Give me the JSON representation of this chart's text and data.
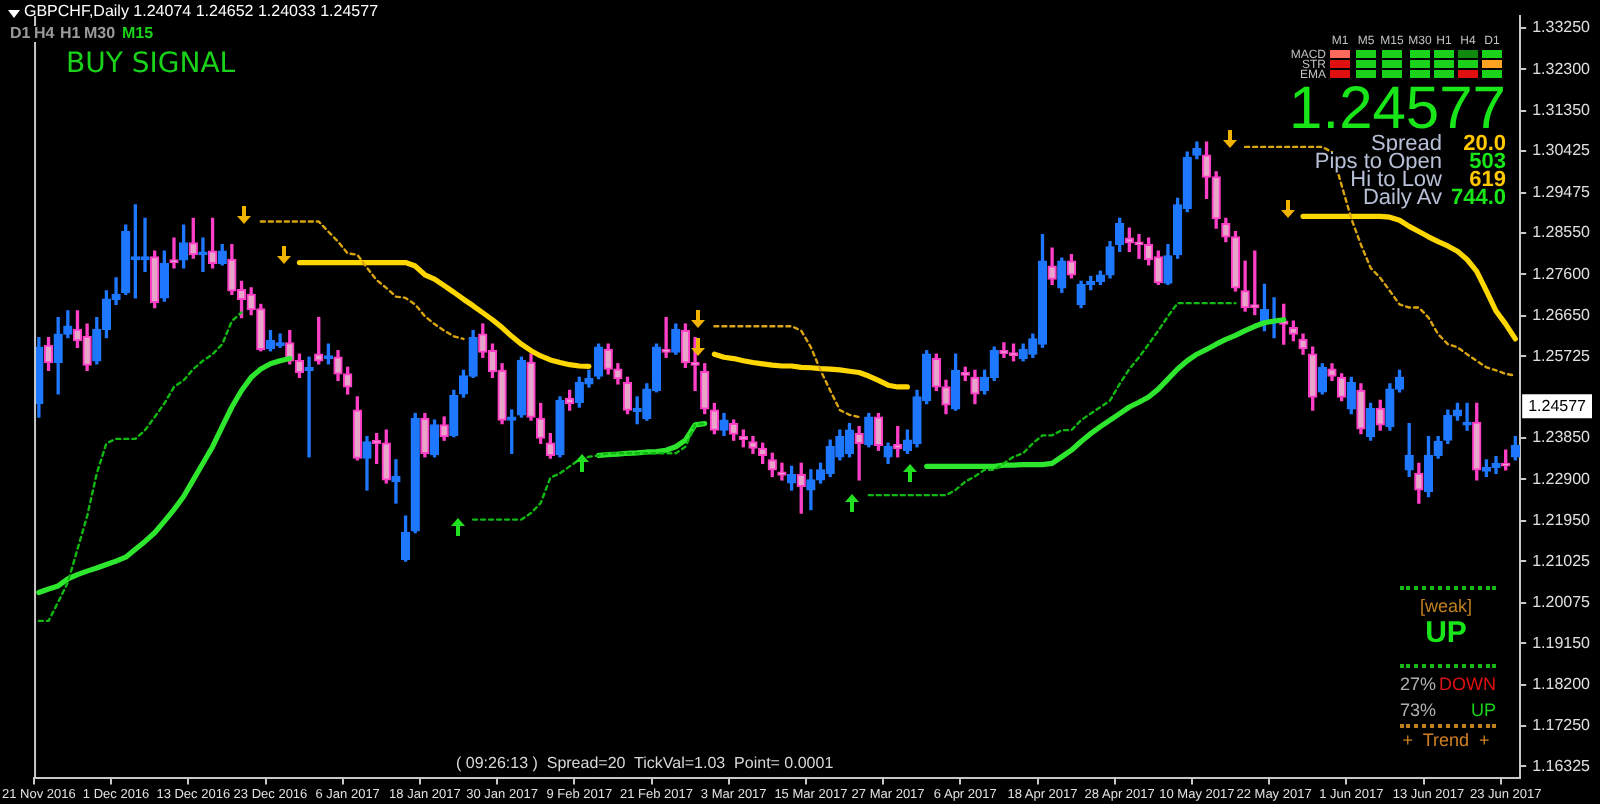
{
  "chart_data": {
    "type": "candlestick",
    "title": "GBPCHF,Daily 1.24074 1.24652 1.24033 1.24577",
    "categories": [
      "21 Nov 2016",
      null,
      null,
      null,
      null,
      null,
      null,
      null,
      "1 Dec 2016",
      null,
      null,
      null,
      null,
      null,
      null,
      null,
      "13 Dec 2016",
      null,
      null,
      null,
      null,
      null,
      null,
      null,
      "23 Dec 2016",
      null,
      null,
      null,
      null,
      null,
      null,
      null,
      "6 Jan 2017",
      null,
      null,
      null,
      null,
      null,
      null,
      null,
      "18 Jan 2017",
      null,
      null,
      null,
      null,
      null,
      null,
      null,
      "30 Jan 2017",
      null,
      null,
      null,
      null,
      null,
      null,
      null,
      "9 Feb 2017",
      null,
      null,
      null,
      null,
      null,
      null,
      null,
      "21 Feb 2017",
      null,
      null,
      null,
      null,
      null,
      null,
      null,
      "3 Mar 2017",
      null,
      null,
      null,
      null,
      null,
      null,
      null,
      "15 Mar 2017",
      null,
      null,
      null,
      null,
      null,
      null,
      null,
      "27 Mar 2017",
      null,
      null,
      null,
      null,
      null,
      null,
      null,
      "6 Apr 2017",
      null,
      null,
      null,
      null,
      null,
      null,
      null,
      "18 Apr 2017",
      null,
      null,
      null,
      null,
      null,
      null,
      null,
      "28 Apr 2017",
      null,
      null,
      null,
      null,
      null,
      null,
      null,
      "10 May 2017",
      null,
      null,
      null,
      null,
      null,
      null,
      null,
      "22 May 2017",
      null,
      null,
      null,
      null,
      null,
      null,
      null,
      "1 Jun 2017",
      null,
      null,
      null,
      null,
      null,
      null,
      null,
      "13 Jun 2017",
      null,
      null,
      null,
      null,
      null,
      null,
      null,
      "23 Jun 2017",
      null
    ],
    "ohlc": [
      [
        1.2464,
        1.2615,
        1.2433,
        1.2593
      ],
      [
        1.2597,
        1.2615,
        1.254,
        1.2558
      ],
      [
        1.2558,
        1.2661,
        1.2486,
        1.2623
      ],
      [
        1.2623,
        1.2676,
        1.2615,
        1.2641
      ],
      [
        1.2634,
        1.2676,
        1.2593,
        1.2608
      ],
      [
        1.2618,
        1.2646,
        1.254,
        1.2552
      ],
      [
        1.2562,
        1.2661,
        1.2555,
        1.2634
      ],
      [
        1.2634,
        1.2722,
        1.2615,
        1.2703
      ],
      [
        1.2702,
        1.2752,
        1.2691,
        1.2714
      ],
      [
        1.2719,
        1.2873,
        1.2714,
        1.2858
      ],
      [
        1.2794,
        1.2919,
        1.2706,
        1.28
      ],
      [
        1.2794,
        1.2888,
        1.2767,
        1.28
      ],
      [
        1.28,
        1.2813,
        1.2684,
        1.2696
      ],
      [
        1.2706,
        1.2813,
        1.2699,
        1.2785
      ],
      [
        1.2793,
        1.2843,
        1.2775,
        1.2787
      ],
      [
        1.2793,
        1.2873,
        1.2775,
        1.2832
      ],
      [
        1.2832,
        1.2888,
        1.2797,
        1.2805
      ],
      [
        1.2805,
        1.2843,
        1.2767,
        1.2811
      ],
      [
        1.2813,
        1.2888,
        1.2775,
        1.2785
      ],
      [
        1.2785,
        1.2828,
        1.2782,
        1.2813
      ],
      [
        1.2794,
        1.2828,
        1.2714,
        1.2722
      ],
      [
        1.2725,
        1.2744,
        1.2661,
        1.2703
      ],
      [
        1.2714,
        1.2729,
        1.2668,
        1.2679
      ],
      [
        1.2681,
        1.2691,
        1.2585,
        1.2588
      ],
      [
        1.259,
        1.2631,
        1.2585,
        1.2608
      ],
      [
        1.2597,
        1.2623,
        1.2593,
        1.2603
      ],
      [
        1.2603,
        1.2631,
        1.2555,
        1.2562
      ],
      [
        1.2562,
        1.2577,
        1.2524,
        1.2535
      ],
      [
        1.254,
        1.257,
        1.2342,
        1.2546
      ],
      [
        1.2577,
        1.2661,
        1.2555,
        1.2562
      ],
      [
        1.2567,
        1.26,
        1.2555,
        1.2573
      ],
      [
        1.257,
        1.2585,
        1.2517,
        1.2532
      ],
      [
        1.2532,
        1.2547,
        1.2486,
        1.2502
      ],
      [
        1.2449,
        1.2479,
        1.2335,
        1.2339
      ],
      [
        1.2339,
        1.2388,
        1.2266,
        1.2376
      ],
      [
        1.2379,
        1.2395,
        1.2327,
        1.2373
      ],
      [
        1.2373,
        1.2403,
        1.2282,
        1.2289
      ],
      [
        1.2285,
        1.2335,
        1.2236,
        1.2297
      ],
      [
        1.2107,
        1.2206,
        1.2103,
        1.2168
      ],
      [
        1.2172,
        1.2441,
        1.2168,
        1.243
      ],
      [
        1.243,
        1.2441,
        1.2342,
        1.235
      ],
      [
        1.2347,
        1.2426,
        1.2342,
        1.2415
      ],
      [
        1.2415,
        1.2433,
        1.238,
        1.2388
      ],
      [
        1.2391,
        1.2494,
        1.2388,
        1.2482
      ],
      [
        1.2486,
        1.254,
        1.2479,
        1.2527
      ],
      [
        1.2527,
        1.2631,
        1.2524,
        1.2615
      ],
      [
        1.2623,
        1.2646,
        1.257,
        1.2582
      ],
      [
        1.2585,
        1.26,
        1.2524,
        1.2537
      ],
      [
        1.254,
        1.2555,
        1.2418,
        1.2426
      ],
      [
        1.2426,
        1.2449,
        1.235,
        1.2433
      ],
      [
        1.2438,
        1.257,
        1.2433,
        1.2562
      ],
      [
        1.2558,
        1.2577,
        1.2426,
        1.2433
      ],
      [
        1.243,
        1.2464,
        1.2373,
        1.2385
      ],
      [
        1.2373,
        1.2395,
        1.2339,
        1.2345
      ],
      [
        1.2347,
        1.2479,
        1.2342,
        1.2471
      ],
      [
        1.2476,
        1.2494,
        1.2449,
        1.2464
      ],
      [
        1.2467,
        1.2524,
        1.2456,
        1.2512
      ],
      [
        1.2509,
        1.254,
        1.2502,
        1.2521
      ],
      [
        1.2527,
        1.26,
        1.2521,
        1.2593
      ],
      [
        1.2588,
        1.26,
        1.2532,
        1.2543
      ],
      [
        1.2543,
        1.2555,
        1.2509,
        1.2521
      ],
      [
        1.2512,
        1.2524,
        1.2441,
        1.2449
      ],
      [
        1.2446,
        1.2479,
        1.2418,
        1.2452
      ],
      [
        1.243,
        1.2509,
        1.2426,
        1.2497
      ],
      [
        1.2494,
        1.26,
        1.2491,
        1.2593
      ],
      [
        1.2588,
        1.2661,
        1.257,
        1.2582
      ],
      [
        1.2582,
        1.2646,
        1.2577,
        1.2634
      ],
      [
        1.2631,
        1.2646,
        1.2547,
        1.2558
      ],
      [
        1.2558,
        1.2615,
        1.2494,
        1.2552
      ],
      [
        1.2537,
        1.2555,
        1.2441,
        1.2452
      ],
      [
        1.2449,
        1.2464,
        1.2395,
        1.2403
      ],
      [
        1.2403,
        1.2441,
        1.2391,
        1.2426
      ],
      [
        1.2418,
        1.2426,
        1.238,
        1.2394
      ],
      [
        1.2388,
        1.2403,
        1.2365,
        1.2382
      ],
      [
        1.2376,
        1.2388,
        1.235,
        1.2362
      ],
      [
        1.2361,
        1.2373,
        1.2327,
        1.2345
      ],
      [
        1.2335,
        1.235,
        1.2297,
        1.2312
      ],
      [
        1.2307,
        1.2327,
        1.2289,
        1.23
      ],
      [
        1.2282,
        1.232,
        1.2266,
        1.2301
      ],
      [
        1.2301,
        1.2327,
        1.2213,
        1.2274
      ],
      [
        1.2266,
        1.2312,
        1.2221,
        1.2289
      ],
      [
        1.2289,
        1.2327,
        1.2282,
        1.2312
      ],
      [
        1.2304,
        1.238,
        1.2297,
        1.2365
      ],
      [
        1.2342,
        1.2403,
        1.2335,
        1.2388
      ],
      [
        1.235,
        1.2418,
        1.2342,
        1.2403
      ],
      [
        1.2395,
        1.2411,
        1.2289,
        1.2373
      ],
      [
        1.237,
        1.2441,
        1.2365,
        1.2433
      ],
      [
        1.2433,
        1.2441,
        1.2357,
        1.2368
      ],
      [
        1.2342,
        1.2373,
        1.2327,
        1.2365
      ],
      [
        1.237,
        1.2411,
        1.2342,
        1.2361
      ],
      [
        1.2357,
        1.2403,
        1.235,
        1.238
      ],
      [
        1.2373,
        1.2494,
        1.2365,
        1.2479
      ],
      [
        1.2471,
        1.2585,
        1.2464,
        1.2577
      ],
      [
        1.2567,
        1.2577,
        1.2494,
        1.2502
      ],
      [
        1.2502,
        1.2517,
        1.2441,
        1.2461
      ],
      [
        1.2452,
        1.2577,
        1.2449,
        1.254
      ],
      [
        1.2535,
        1.2547,
        1.2517,
        1.2529
      ],
      [
        1.2524,
        1.254,
        1.2464,
        1.2486
      ],
      [
        1.2494,
        1.254,
        1.2486,
        1.2524
      ],
      [
        1.2524,
        1.2593,
        1.2517,
        1.2585
      ],
      [
        1.2585,
        1.2603,
        1.257,
        1.2579
      ],
      [
        1.258,
        1.26,
        1.2562,
        1.2574
      ],
      [
        1.2567,
        1.26,
        1.2562,
        1.2588
      ],
      [
        1.2577,
        1.2623,
        1.257,
        1.2612
      ],
      [
        1.26,
        1.2851,
        1.2593,
        1.279
      ],
      [
        1.2779,
        1.282,
        1.2737,
        1.2749
      ],
      [
        1.2729,
        1.2797,
        1.2719,
        1.279
      ],
      [
        1.279,
        1.2805,
        1.2752,
        1.2759
      ],
      [
        1.2691,
        1.2744,
        1.2684,
        1.2737
      ],
      [
        1.2737,
        1.2755,
        1.2725,
        1.2744
      ],
      [
        1.2744,
        1.2767,
        1.2737,
        1.2758
      ],
      [
        1.2759,
        1.2835,
        1.2752,
        1.2823
      ],
      [
        1.2828,
        1.2888,
        1.2813,
        1.2876
      ],
      [
        1.2843,
        1.2866,
        1.2813,
        1.2832
      ],
      [
        1.2834,
        1.2851,
        1.2797,
        1.2828
      ],
      [
        1.2828,
        1.2843,
        1.2782,
        1.2794
      ],
      [
        1.28,
        1.2813,
        1.2737,
        1.2741
      ],
      [
        1.274,
        1.2828,
        1.2737,
        1.2802
      ],
      [
        1.2805,
        1.2934,
        1.2797,
        1.2919
      ],
      [
        1.2911,
        1.304,
        1.2904,
        1.3028
      ],
      [
        1.3033,
        1.3063,
        1.3025,
        1.3048
      ],
      [
        1.3033,
        1.3063,
        1.2934,
        1.2983
      ],
      [
        1.2983,
        1.2995,
        1.2866,
        1.2888
      ],
      [
        1.2876,
        1.2888,
        1.2835,
        1.2846
      ],
      [
        1.2846,
        1.2858,
        1.2722,
        1.2729
      ],
      [
        1.2722,
        1.279,
        1.2676,
        1.2684
      ],
      [
        1.269,
        1.2813,
        1.2668,
        1.2684
      ],
      [
        1.2649,
        1.2737,
        1.2631,
        1.2679
      ],
      [
        1.2649,
        1.2706,
        1.2615,
        1.2655
      ],
      [
        1.2653,
        1.2691,
        1.26,
        1.2646
      ],
      [
        1.2638,
        1.2653,
        1.2608,
        1.2623
      ],
      [
        1.2611,
        1.2623,
        1.2577,
        1.259
      ],
      [
        1.2577,
        1.2593,
        1.2449,
        1.2479
      ],
      [
        1.2491,
        1.2555,
        1.2486,
        1.2547
      ],
      [
        1.2543,
        1.2555,
        1.2517,
        1.2527
      ],
      [
        1.2524,
        1.2532,
        1.2471,
        1.2479
      ],
      [
        1.2452,
        1.2524,
        1.2441,
        1.2512
      ],
      [
        1.2494,
        1.2509,
        1.2395,
        1.2406
      ],
      [
        1.2388,
        1.2464,
        1.238,
        1.2452
      ],
      [
        1.2453,
        1.2471,
        1.2403,
        1.2415
      ],
      [
        1.2411,
        1.2509,
        1.2403,
        1.2497
      ],
      [
        1.2497,
        1.254,
        1.2491,
        1.2524
      ],
      [
        1.2312,
        1.2418,
        1.2297,
        1.2345
      ],
      [
        1.2304,
        1.2327,
        1.2236,
        1.2266
      ],
      [
        1.2263,
        1.2388,
        1.2251,
        1.2345
      ],
      [
        1.2345,
        1.2388,
        1.2339,
        1.2377
      ],
      [
        1.238,
        1.2449,
        1.2373,
        1.2436
      ],
      [
        1.2436,
        1.2464,
        1.2426,
        1.2449
      ],
      [
        1.2415,
        1.2464,
        1.2403,
        1.2421
      ],
      [
        1.2421,
        1.2464,
        1.2289,
        1.2312
      ],
      [
        1.2309,
        1.2335,
        1.2297,
        1.2317
      ],
      [
        1.2318,
        1.2342,
        1.2304,
        1.2327
      ],
      [
        1.2327,
        1.2357,
        1.2312,
        1.2321
      ],
      [
        1.2342,
        1.2388,
        1.2335,
        1.2368
      ]
    ],
    "series": [
      {
        "type": "line",
        "color": "#12b812",
        "line_style": "dotted",
        "values": [
          1.1966,
          1.1966,
          1.2009,
          1.2054,
          1.213,
          1.2206,
          1.2304,
          1.2373,
          1.2383,
          1.2383,
          1.2383,
          1.2403,
          1.2433,
          1.2464,
          1.2502,
          1.2517,
          1.2543,
          1.2562,
          1.2577,
          1.26,
          1.2653,
          1.2673,
          null,
          null,
          null,
          null,
          null,
          null,
          null,
          null,
          null,
          null,
          null,
          null,
          null,
          null,
          null,
          null,
          null,
          null,
          null,
          null,
          null,
          null,
          null,
          1.2198,
          1.2198,
          1.2198,
          1.2198,
          1.2198,
          1.2198,
          1.2213,
          1.2236,
          1.2294,
          1.2304,
          1.232,
          1.2335,
          1.2342,
          1.2345,
          1.235,
          1.235,
          1.235,
          1.235,
          1.235,
          1.235,
          1.235,
          1.235,
          1.2365,
          1.2415,
          1.2418,
          null,
          null,
          null,
          null,
          null,
          null,
          null,
          null,
          null,
          null,
          null,
          null,
          null,
          null,
          null,
          null,
          1.2254,
          1.2254,
          1.2254,
          1.2254,
          1.2254,
          1.2254,
          1.2254,
          1.2254,
          1.2254,
          1.2266,
          1.2285,
          1.2297,
          1.2312,
          1.2312,
          1.2327,
          1.2342,
          1.235,
          1.2373,
          1.2391,
          1.2391,
          1.2403,
          1.2403,
          1.2426,
          1.2441,
          1.2456,
          1.2471,
          1.2509,
          1.2543,
          1.257,
          1.26,
          1.2631,
          1.2664,
          1.2694,
          1.2694,
          1.2694,
          1.2694,
          1.2694,
          1.2694,
          1.2694,
          null,
          null,
          null,
          null,
          null,
          null,
          null,
          null,
          null,
          null,
          null,
          null,
          null,
          null,
          null,
          null,
          null,
          null,
          null,
          null,
          null,
          null,
          null,
          null,
          null,
          null,
          null,
          null,
          null
        ]
      },
      {
        "type": "line",
        "color": "#d9a412",
        "line_style": "dotted",
        "values": [
          null,
          null,
          null,
          null,
          null,
          null,
          null,
          null,
          null,
          null,
          null,
          null,
          null,
          null,
          null,
          null,
          null,
          null,
          null,
          null,
          null,
          null,
          null,
          1.2881,
          1.2881,
          1.2881,
          1.2881,
          1.2881,
          1.2881,
          1.2881,
          1.2858,
          1.2835,
          1.2808,
          1.2805,
          1.2775,
          1.2747,
          1.2729,
          1.2709,
          1.2706,
          1.2691,
          1.2664,
          1.2646,
          1.2631,
          1.2618,
          1.2612,
          null,
          null,
          null,
          null,
          null,
          null,
          null,
          null,
          null,
          null,
          null,
          null,
          null,
          null,
          null,
          null,
          null,
          null,
          null,
          null,
          null,
          null,
          null,
          null,
          null,
          1.2641,
          1.2641,
          1.2641,
          1.2641,
          1.2641,
          1.2641,
          1.2641,
          1.2641,
          1.2641,
          1.2631,
          1.2593,
          1.254,
          1.2494,
          1.2449,
          1.2438,
          1.2433,
          null,
          null,
          null,
          null,
          null,
          null,
          null,
          null,
          null,
          null,
          null,
          null,
          null,
          null,
          null,
          null,
          null,
          null,
          null,
          null,
          null,
          null,
          null,
          null,
          null,
          null,
          null,
          null,
          null,
          null,
          null,
          null,
          null,
          null,
          null,
          null,
          null,
          null,
          null,
          1.3052,
          1.3052,
          1.3052,
          1.3052,
          1.3052,
          1.3052,
          1.3052,
          1.3052,
          1.3052,
          1.304,
          1.2964,
          1.2888,
          1.2828,
          1.2775,
          1.2752,
          1.2722,
          1.2691,
          1.2684,
          1.2684,
          1.2661,
          1.2623,
          1.26,
          1.2593,
          1.2577,
          1.2562,
          1.2547,
          1.254,
          1.2532,
          1.2528
        ]
      },
      {
        "type": "line",
        "color": "#2ee62e",
        "line_style": "solid",
        "values": [
          1.2031,
          1.2039,
          1.2046,
          1.2062,
          1.2072,
          1.208,
          1.2087,
          1.2095,
          1.2103,
          1.2112,
          1.213,
          1.2148,
          1.2168,
          1.2194,
          1.2221,
          1.2251,
          1.2289,
          1.2327,
          1.2365,
          1.2411,
          1.2456,
          1.2494,
          1.2524,
          1.2543,
          1.2555,
          1.2562,
          1.2567,
          null,
          null,
          null,
          null,
          null,
          null,
          null,
          null,
          null,
          null,
          null,
          null,
          null,
          null,
          null,
          null,
          null,
          null,
          null,
          null,
          null,
          null,
          null,
          null,
          null,
          null,
          null,
          null,
          null,
          null,
          null,
          1.2345,
          1.2347,
          1.2348,
          1.235,
          1.2351,
          1.2353,
          1.2354,
          1.2357,
          1.2365,
          1.238,
          1.2415,
          1.2418,
          null,
          null,
          null,
          null,
          null,
          null,
          null,
          null,
          null,
          null,
          null,
          null,
          null,
          null,
          null,
          null,
          null,
          null,
          null,
          null,
          null,
          null,
          1.232,
          1.232,
          1.232,
          1.232,
          1.232,
          1.232,
          1.232,
          1.232,
          1.2323,
          1.2323,
          1.2324,
          1.2324,
          1.2324,
          1.2327,
          1.2342,
          1.2357,
          1.2377,
          1.2395,
          1.2411,
          1.2426,
          1.2441,
          1.2456,
          1.2467,
          1.2479,
          1.2497,
          1.252,
          1.2543,
          1.2562,
          1.2577,
          1.2588,
          1.26,
          1.2611,
          1.262,
          1.2631,
          1.2641,
          1.2649,
          1.2653,
          1.2656,
          null,
          null,
          null,
          null,
          null,
          null,
          null,
          null,
          null,
          null,
          null,
          null,
          null,
          null,
          null,
          null,
          null,
          null,
          null,
          null,
          null,
          null,
          null,
          null
        ]
      },
      {
        "type": "line",
        "color": "#ffd700",
        "line_style": "solid",
        "values": [
          null,
          null,
          null,
          null,
          null,
          null,
          null,
          null,
          null,
          null,
          null,
          null,
          null,
          null,
          null,
          null,
          null,
          null,
          null,
          null,
          null,
          null,
          null,
          null,
          null,
          null,
          null,
          1.2787,
          1.2787,
          1.2787,
          1.2787,
          1.2787,
          1.2787,
          1.2787,
          1.2787,
          1.2787,
          1.2787,
          1.2787,
          1.2787,
          1.2779,
          1.2759,
          1.2749,
          1.2734,
          1.2719,
          1.2703,
          1.2688,
          1.2672,
          1.2656,
          1.2638,
          1.2618,
          1.26,
          1.2585,
          1.2573,
          1.2564,
          1.2558,
          1.2553,
          1.255,
          1.2549,
          null,
          null,
          null,
          null,
          null,
          null,
          null,
          null,
          null,
          null,
          null,
          null,
          1.2577,
          1.257,
          1.2567,
          1.2562,
          1.2558,
          1.2555,
          1.2552,
          1.255,
          1.255,
          1.2547,
          1.2546,
          1.2544,
          1.2543,
          1.2541,
          1.2538,
          1.2535,
          1.2527,
          1.2517,
          1.2506,
          1.2502,
          1.2502,
          null,
          null,
          null,
          null,
          null,
          null,
          null,
          null,
          null,
          null,
          null,
          null,
          null,
          null,
          null,
          null,
          null,
          null,
          null,
          null,
          null,
          null,
          null,
          null,
          null,
          null,
          null,
          null,
          null,
          null,
          null,
          null,
          null,
          null,
          null,
          null,
          null,
          null,
          null,
          null,
          1.2893,
          1.2893,
          1.2893,
          1.2893,
          1.2893,
          1.2893,
          1.2893,
          1.2893,
          1.2893,
          1.2891,
          1.2884,
          1.287,
          1.2858,
          1.2846,
          1.2835,
          1.2825,
          1.2813,
          1.2794,
          1.2767,
          1.2722,
          1.2676,
          1.2646,
          1.2612
        ]
      }
    ],
    "ylim": [
      1.1605,
      1.3352
    ],
    "yticks": [
      {
        "value": 1.3325,
        "label": "1.33250"
      },
      {
        "value": 1.323,
        "label": "1.32300"
      },
      {
        "value": 1.3135,
        "label": "1.31350"
      },
      {
        "value": 1.30425,
        "label": "1.30425"
      },
      {
        "value": 1.29475,
        "label": "1.29475"
      },
      {
        "value": 1.2855,
        "label": "1.28550"
      },
      {
        "value": 1.276,
        "label": "1.27600"
      },
      {
        "value": 1.2665,
        "label": "1.26650"
      },
      {
        "value": 1.25725,
        "label": "1.25725"
      },
      {
        "value": 1.2385,
        "label": "1.23850"
      },
      {
        "value": 1.229,
        "label": "1.22900"
      },
      {
        "value": 1.2195,
        "label": "1.21950"
      },
      {
        "value": 1.21025,
        "label": "1.21025"
      },
      {
        "value": 1.20075,
        "label": "1.20075"
      },
      {
        "value": 1.1915,
        "label": "1.19150"
      },
      {
        "value": 1.182,
        "label": "1.18200"
      },
      {
        "value": 1.1725,
        "label": "1.17250"
      },
      {
        "value": 1.16325,
        "label": "1.16325"
      }
    ],
    "annotations": [
      {
        "text": "1.24577",
        "y": 1.24577
      },
      "D1",
      "H4",
      "H1",
      "M30",
      "M15",
      "BUY SIGNAL",
      "M1",
      "M5",
      "M15",
      "M30",
      "H1",
      "H4",
      "D1",
      "MACD",
      "STR",
      "EMA",
      "1.24577",
      "Spread",
      "20.0",
      "Pips to Open",
      "503",
      "Hi to Low",
      "619",
      "Daily Av",
      "744.0",
      "[weak]",
      "UP",
      "27%",
      "DOWN",
      "73%",
      "UP",
      "+  Trend  +",
      "( 09:26:13 )  Spread=20  TickVal=1.03  Point= 0.0001"
    ]
  }
}
